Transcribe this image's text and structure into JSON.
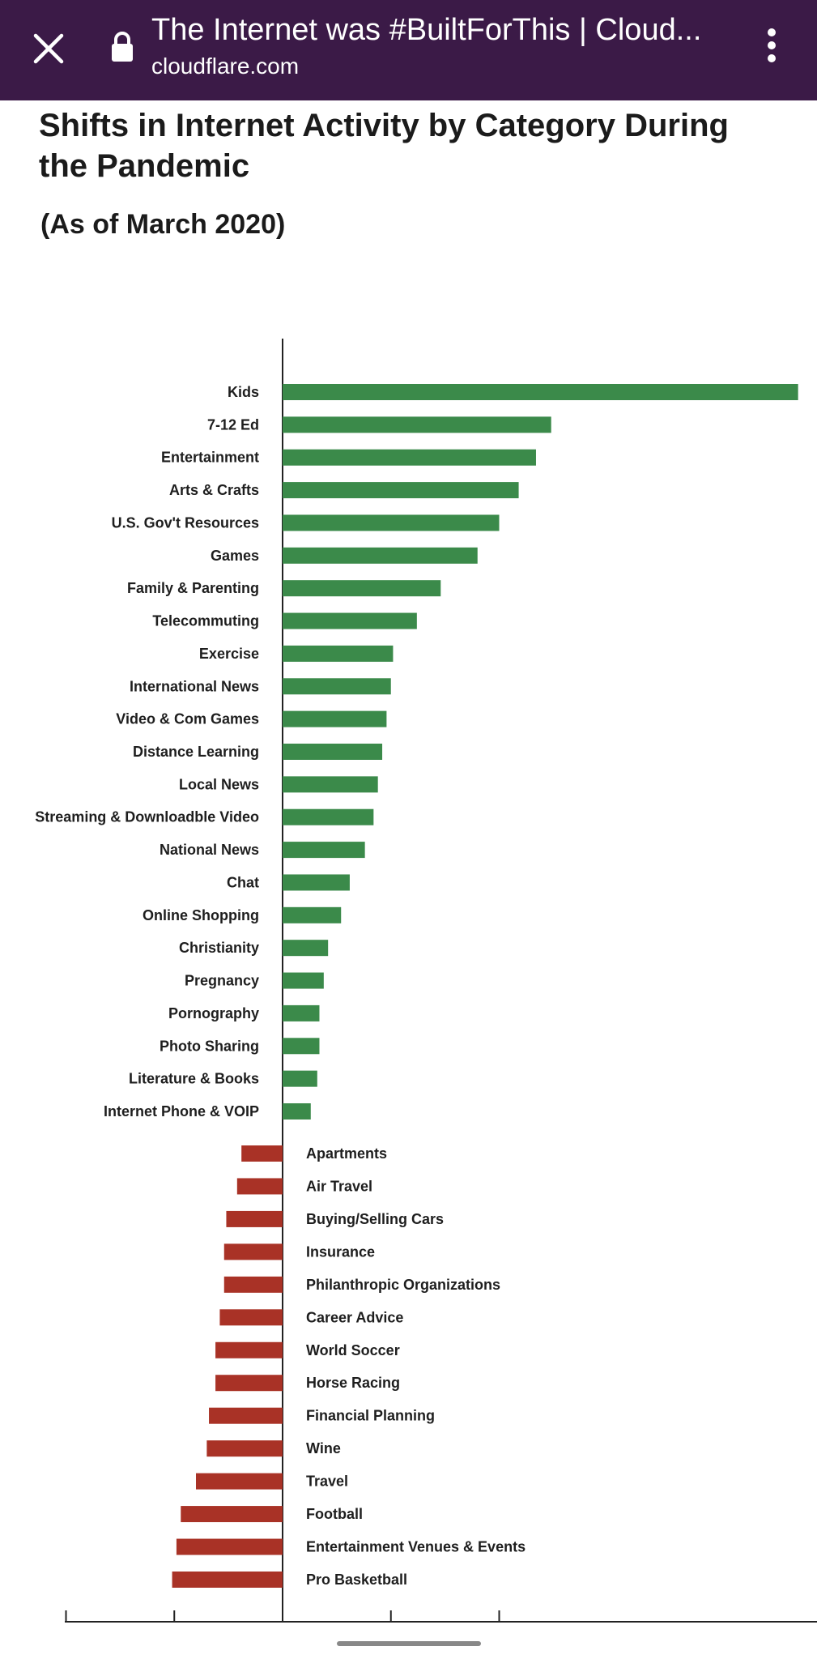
{
  "browser": {
    "title": "The Internet was #BuiltForThis | Cloud...",
    "url": "cloudflare.com",
    "close_icon": "close-icon",
    "lock_icon": "lock-icon",
    "menu_icon": "more-vert-icon",
    "bar_color": "#3b1a47"
  },
  "chart_data": {
    "type": "bar",
    "orientation": "horizontal",
    "title": "Shifts in Internet Activity by Category During the Pandemic",
    "subtitle": "(As of March 2020)",
    "xlabel": "",
    "ylabel": "",
    "grid": false,
    "xlim": [
      -100,
      240
    ],
    "xtick_count": 7,
    "colors": {
      "positive": "#3b8a4a",
      "negative": "#a93226"
    },
    "categories": [
      "Kids",
      "7-12 Ed",
      "Entertainment",
      "Arts & Crafts",
      "U.S. Gov't Resources",
      "Games",
      "Family & Parenting",
      "Telecommuting",
      "Exercise",
      "International News",
      "Video & Com Games",
      "Distance Learning",
      "Local News",
      "Streaming & Downloadble Video",
      "National News",
      "Chat",
      "Online Shopping",
      "Christianity",
      "Pregnancy",
      "Pornography",
      "Photo Sharing",
      "Literature & Books",
      "Internet Phone & VOIP",
      "Apartments",
      "Air Travel",
      "Buying/Selling Cars",
      "Insurance",
      "Philanthropic Organizations",
      "Career Advice",
      "World Soccer",
      "Horse Racing",
      "Financial Planning",
      "Wine",
      "Travel",
      "Football",
      "Entertainment Venues & Events",
      "Pro Basketball"
    ],
    "values": [
      238,
      124,
      117,
      109,
      100,
      90,
      73,
      62,
      51,
      50,
      48,
      46,
      44,
      42,
      38,
      31,
      27,
      21,
      19,
      17,
      17,
      16,
      13,
      -19,
      -21,
      -26,
      -27,
      -27,
      -29,
      -31,
      -31,
      -34,
      -35,
      -40,
      -47,
      -49,
      -51
    ]
  }
}
